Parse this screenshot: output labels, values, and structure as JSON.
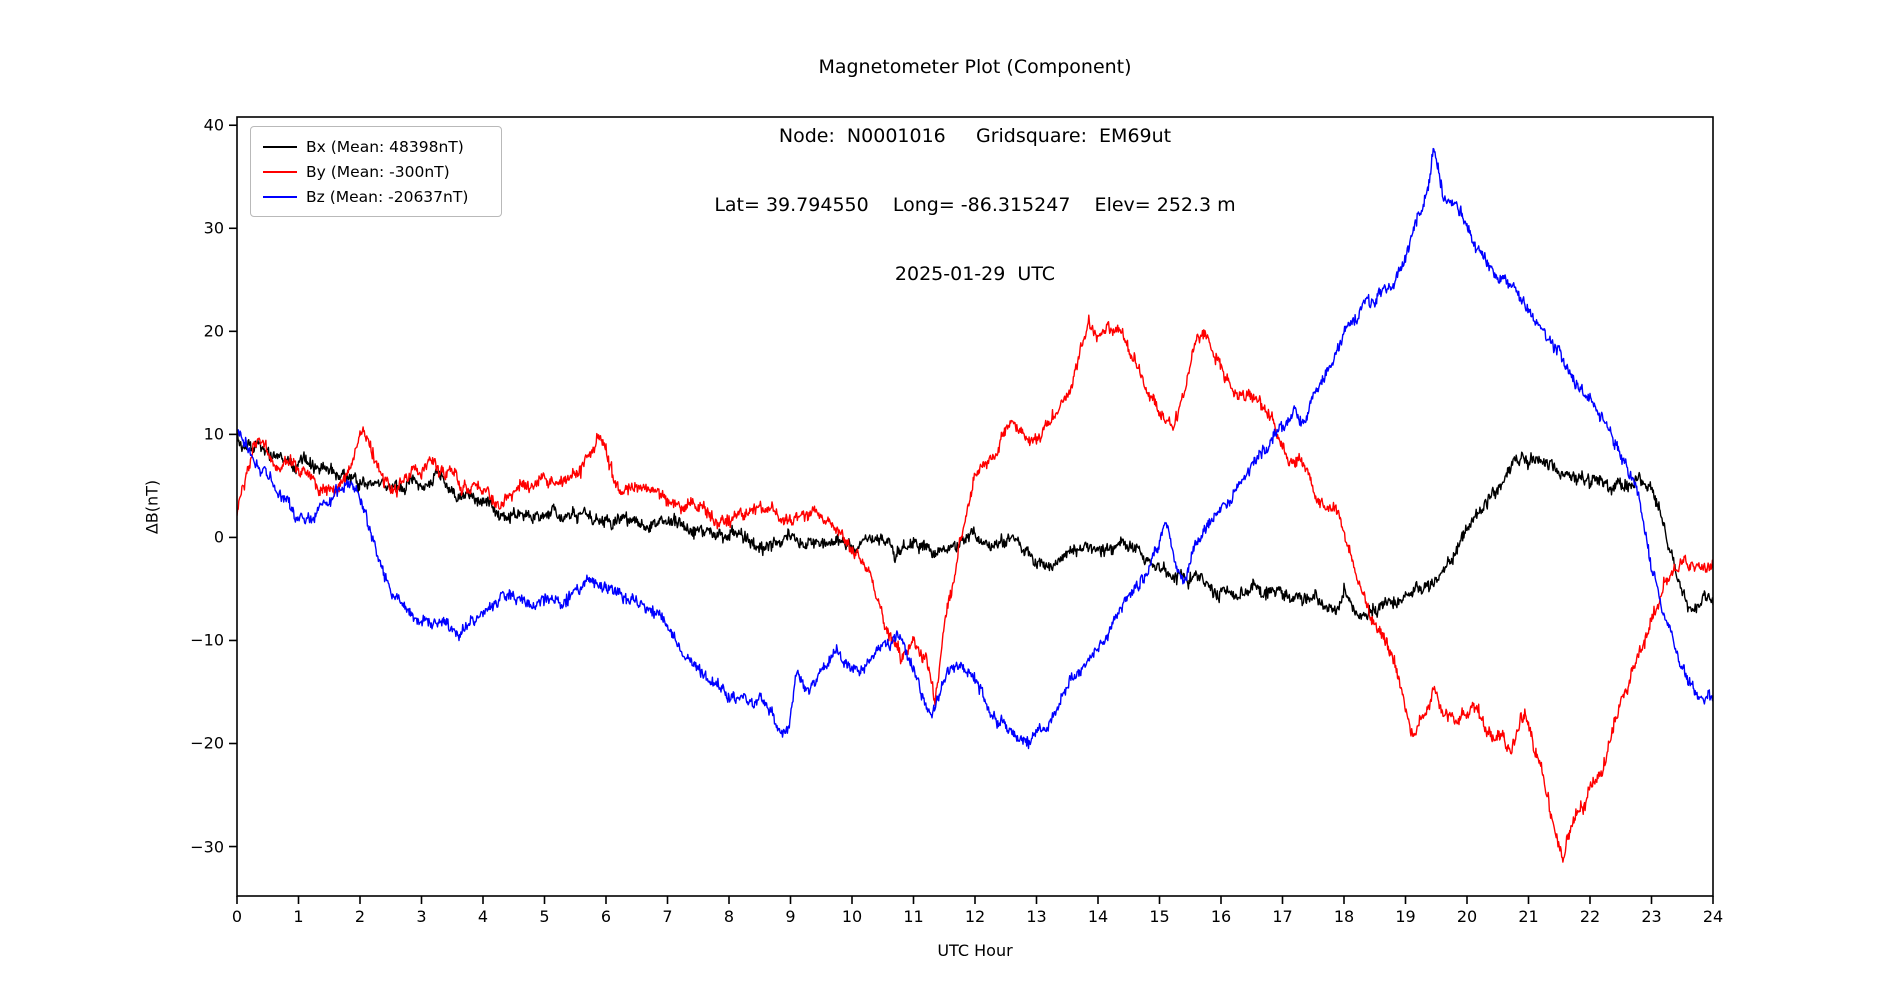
{
  "figure": {
    "title_lines": [
      "Magnetometer Plot (Component)",
      "Node:  N0001016     Gridsquare:  EM69ut",
      "Lat= 39.794550    Long= -86.315247    Elev= 252.3 m",
      "2025-01-29  UTC"
    ]
  },
  "axes": {
    "xlabel": "UTC Hour",
    "ylabel": "ΔB(nT)",
    "x_ticks": [
      0,
      1,
      2,
      3,
      4,
      5,
      6,
      7,
      8,
      9,
      10,
      11,
      12,
      13,
      14,
      15,
      16,
      17,
      18,
      19,
      20,
      21,
      22,
      23,
      24
    ],
    "y_ticks": [
      40,
      30,
      20,
      10,
      0,
      -10,
      -20,
      -30
    ]
  },
  "legend": {
    "entries": [
      {
        "label": "Bx (Mean: 48398nT)",
        "color": "#000000"
      },
      {
        "label": "By (Mean: -300nT)",
        "color": "#ff0000"
      },
      {
        "label": "Bz (Mean: -20637nT)",
        "color": "#0000ff"
      }
    ]
  },
  "chart_data": {
    "type": "line",
    "title": "Magnetometer Plot (Component)",
    "subtitle": "Node N0001016, Gridsquare EM69ut, 2025-01-29 UTC",
    "xlabel": "UTC Hour",
    "ylabel": "ΔB(nT)",
    "xlim": [
      0,
      24
    ],
    "ylim": [
      -34.8,
      40.8
    ],
    "grid": false,
    "legend_position": "upper left",
    "series": [
      {
        "name": "Bx (Mean: 48398nT)",
        "color": "#000000",
        "seed": 11,
        "noise_amp": 1.0,
        "anchors": [
          [
            0,
            10
          ],
          [
            0.1,
            9.2
          ],
          [
            0.3,
            8.6
          ],
          [
            0.5,
            8.2
          ],
          [
            0.8,
            7.4
          ],
          [
            1,
            7
          ],
          [
            1.3,
            6.6
          ],
          [
            1.5,
            6.4
          ],
          [
            1.8,
            6.2
          ],
          [
            2,
            5.8
          ],
          [
            2.3,
            5.1
          ],
          [
            2.5,
            4.8
          ],
          [
            2.8,
            5.1
          ],
          [
            3,
            5.2
          ],
          [
            3.3,
            5.5
          ],
          [
            3.5,
            4.8
          ],
          [
            3.8,
            4.1
          ],
          [
            4,
            3.5
          ],
          [
            4.3,
            3
          ],
          [
            4.5,
            2.8
          ],
          [
            5,
            2.5
          ],
          [
            5.5,
            2
          ],
          [
            6,
            2.1
          ],
          [
            6.5,
            1.6
          ],
          [
            7,
            1.1
          ],
          [
            7.5,
            0.6
          ],
          [
            8,
            0.1
          ],
          [
            8.5,
            -0.4
          ],
          [
            9,
            0
          ],
          [
            9.5,
            -0.5
          ],
          [
            10,
            -1
          ],
          [
            10.4,
            -1.1
          ],
          [
            10.7,
            -1.9
          ],
          [
            11,
            -1.5
          ],
          [
            11.5,
            -0.6
          ],
          [
            12,
            -0.2
          ],
          [
            12.5,
            -0.7
          ],
          [
            13,
            -1.6
          ],
          [
            13.2,
            -2.5
          ],
          [
            13.5,
            -0.9
          ],
          [
            14,
            -0.9
          ],
          [
            14.5,
            -0.7
          ],
          [
            15,
            -2.3
          ],
          [
            15.5,
            -4.4
          ],
          [
            16,
            -5.1
          ],
          [
            16.5,
            -5.5
          ],
          [
            17,
            -6
          ],
          [
            17.5,
            -6.6
          ],
          [
            17.7,
            -7.3
          ],
          [
            18,
            -5.9
          ],
          [
            18.25,
            -8.1
          ],
          [
            18.5,
            -7
          ],
          [
            19,
            -6.1
          ],
          [
            19.3,
            -4.7
          ],
          [
            19.5,
            -4.1
          ],
          [
            19.8,
            -2.1
          ],
          [
            20,
            0.3
          ],
          [
            20.15,
            2.2
          ],
          [
            20.3,
            3.9
          ],
          [
            20.5,
            5.2
          ],
          [
            20.7,
            6.7
          ],
          [
            20.9,
            8
          ],
          [
            21,
            6.5
          ],
          [
            21.2,
            7
          ],
          [
            21.35,
            7.6
          ],
          [
            21.5,
            6.4
          ],
          [
            21.7,
            6
          ],
          [
            22,
            5.9
          ],
          [
            22.2,
            6
          ],
          [
            22.4,
            5.6
          ],
          [
            22.6,
            5.1
          ],
          [
            22.8,
            5.8
          ],
          [
            23,
            4.9
          ],
          [
            23.1,
            3.6
          ],
          [
            23.25,
            0.5
          ],
          [
            23.4,
            -3.5
          ],
          [
            23.55,
            -5.6
          ],
          [
            23.7,
            -7
          ],
          [
            23.85,
            -6.5
          ],
          [
            24,
            -6.8
          ]
        ]
      },
      {
        "name": "By (Mean: -300nT)",
        "color": "#ff0000",
        "seed": 22,
        "noise_amp": 1.0,
        "anchors": [
          [
            0,
            2
          ],
          [
            0.15,
            6.5
          ],
          [
            0.3,
            9.3
          ],
          [
            0.5,
            8.3
          ],
          [
            0.7,
            7.5
          ],
          [
            1,
            6.5
          ],
          [
            1.3,
            5.3
          ],
          [
            1.5,
            5
          ],
          [
            1.7,
            4.8
          ],
          [
            1.9,
            7.5
          ],
          [
            2.05,
            10.6
          ],
          [
            2.2,
            8
          ],
          [
            2.4,
            5.2
          ],
          [
            2.6,
            4.6
          ],
          [
            2.8,
            6
          ],
          [
            3,
            6.8
          ],
          [
            3.2,
            7
          ],
          [
            3.5,
            5.6
          ],
          [
            3.8,
            4.8
          ],
          [
            4,
            4.4
          ],
          [
            4.3,
            3.8
          ],
          [
            4.6,
            4.4
          ],
          [
            5,
            5
          ],
          [
            5.3,
            5.3
          ],
          [
            5.6,
            6.2
          ],
          [
            5.85,
            10.3
          ],
          [
            6,
            8.8
          ],
          [
            6.15,
            5
          ],
          [
            6.3,
            3.6
          ],
          [
            6.5,
            4.6
          ],
          [
            6.7,
            4.9
          ],
          [
            7,
            3.8
          ],
          [
            7.3,
            2.6
          ],
          [
            7.6,
            2
          ],
          [
            8,
            1.4
          ],
          [
            8.3,
            2.1
          ],
          [
            8.5,
            2.7
          ],
          [
            8.8,
            1.8
          ],
          [
            9,
            2.3
          ],
          [
            9.3,
            2.5
          ],
          [
            9.5,
            2
          ],
          [
            9.8,
            0.6
          ],
          [
            10,
            -0.9
          ],
          [
            10.2,
            -2.2
          ],
          [
            10.4,
            -5.5
          ],
          [
            10.6,
            -10
          ],
          [
            10.8,
            -11.5
          ],
          [
            11,
            -10.5
          ],
          [
            11.2,
            -12
          ],
          [
            11.35,
            -15.8
          ],
          [
            11.5,
            -8
          ],
          [
            11.65,
            -3.7
          ],
          [
            11.8,
            0.2
          ],
          [
            12,
            4.9
          ],
          [
            12.2,
            7.3
          ],
          [
            12.4,
            9.6
          ],
          [
            12.6,
            11.6
          ],
          [
            12.8,
            9.8
          ],
          [
            13,
            8.6
          ],
          [
            13.2,
            10.5
          ],
          [
            13.4,
            13
          ],
          [
            13.6,
            15.5
          ],
          [
            13.85,
            21
          ],
          [
            14,
            19.6
          ],
          [
            14.2,
            20.6
          ],
          [
            14.4,
            19.9
          ],
          [
            14.6,
            16.6
          ],
          [
            14.8,
            14
          ],
          [
            15,
            12.1
          ],
          [
            15.2,
            10.2
          ],
          [
            15.4,
            13
          ],
          [
            15.6,
            17.8
          ],
          [
            15.75,
            18.7
          ],
          [
            15.9,
            17.6
          ],
          [
            16,
            16.6
          ],
          [
            16.2,
            14.6
          ],
          [
            16.4,
            13.3
          ],
          [
            16.6,
            12.5
          ],
          [
            16.8,
            11.6
          ],
          [
            17,
            9.2
          ],
          [
            17.2,
            7.4
          ],
          [
            17.4,
            6.4
          ],
          [
            17.55,
            3.6
          ],
          [
            17.7,
            3.1
          ],
          [
            17.9,
            2.9
          ],
          [
            18,
            0.5
          ],
          [
            18.2,
            -4
          ],
          [
            18.4,
            -7
          ],
          [
            18.6,
            -9
          ],
          [
            18.8,
            -11
          ],
          [
            19,
            -16
          ],
          [
            19.1,
            -18.8
          ],
          [
            19.3,
            -17
          ],
          [
            19.45,
            -14.9
          ],
          [
            19.6,
            -16.5
          ],
          [
            19.8,
            -18
          ],
          [
            20,
            -17.4
          ],
          [
            20.1,
            -16.4
          ],
          [
            20.3,
            -19
          ],
          [
            20.5,
            -19.6
          ],
          [
            20.7,
            -20.3
          ],
          [
            20.95,
            -16.4
          ],
          [
            21.1,
            -21
          ],
          [
            21.25,
            -23.6
          ],
          [
            21.4,
            -28
          ],
          [
            21.55,
            -30.3
          ],
          [
            21.7,
            -27.6
          ],
          [
            21.9,
            -26
          ],
          [
            22,
            -24.2
          ],
          [
            22.2,
            -22
          ],
          [
            22.4,
            -17.6
          ],
          [
            22.6,
            -14.4
          ],
          [
            22.8,
            -11
          ],
          [
            23,
            -7.7
          ],
          [
            23.2,
            -5
          ],
          [
            23.4,
            -3
          ],
          [
            23.55,
            -2.2
          ],
          [
            23.7,
            -3.6
          ],
          [
            23.85,
            -3
          ],
          [
            24,
            -2.4
          ]
        ]
      },
      {
        "name": "Bz (Mean: -20637nT)",
        "color": "#0000ff",
        "seed": 33,
        "noise_amp": 0.9,
        "anchors": [
          [
            0,
            10.4
          ],
          [
            0.3,
            7
          ],
          [
            0.5,
            6
          ],
          [
            0.8,
            3.5
          ],
          [
            1,
            2.3
          ],
          [
            1.2,
            1.9
          ],
          [
            1.4,
            3
          ],
          [
            1.6,
            4
          ],
          [
            1.85,
            5.4
          ],
          [
            2,
            4
          ],
          [
            2.2,
            0
          ],
          [
            2.4,
            -4.5
          ],
          [
            2.7,
            -6.6
          ],
          [
            3,
            -7.6
          ],
          [
            3.2,
            -8
          ],
          [
            3.4,
            -8.6
          ],
          [
            3.6,
            -9.8
          ],
          [
            3.8,
            -8
          ],
          [
            4,
            -6.8
          ],
          [
            4.3,
            -5.6
          ],
          [
            4.6,
            -6.6
          ],
          [
            5,
            -6.1
          ],
          [
            5.3,
            -6.6
          ],
          [
            5.6,
            -5.1
          ],
          [
            5.9,
            -4.7
          ],
          [
            6.2,
            -5
          ],
          [
            6.5,
            -5.6
          ],
          [
            6.8,
            -7.6
          ],
          [
            7,
            -9
          ],
          [
            7.3,
            -11.5
          ],
          [
            7.6,
            -13
          ],
          [
            8,
            -15.5
          ],
          [
            8.3,
            -16.6
          ],
          [
            8.5,
            -15.6
          ],
          [
            8.8,
            -18.1
          ],
          [
            8.95,
            -18.6
          ],
          [
            9.1,
            -13
          ],
          [
            9.3,
            -15
          ],
          [
            9.5,
            -13.6
          ],
          [
            9.8,
            -11.9
          ],
          [
            10,
            -12.8
          ],
          [
            10.3,
            -12
          ],
          [
            10.5,
            -10.8
          ],
          [
            10.8,
            -10
          ],
          [
            11,
            -12.6
          ],
          [
            11.3,
            -17.6
          ],
          [
            11.5,
            -13.6
          ],
          [
            11.7,
            -11.6
          ],
          [
            12,
            -13.6
          ],
          [
            12.3,
            -18
          ],
          [
            12.5,
            -18.6
          ],
          [
            12.9,
            -19.9
          ],
          [
            13,
            -19
          ],
          [
            13.3,
            -17
          ],
          [
            13.5,
            -15
          ],
          [
            13.8,
            -11.9
          ],
          [
            14,
            -10.6
          ],
          [
            14.3,
            -7.6
          ],
          [
            14.5,
            -5.9
          ],
          [
            14.8,
            -3.6
          ],
          [
            15,
            -1
          ],
          [
            15.1,
            0.8
          ],
          [
            15.25,
            -2
          ],
          [
            15.4,
            -3.9
          ],
          [
            15.55,
            -0.6
          ],
          [
            15.8,
            1.8
          ],
          [
            16,
            3.4
          ],
          [
            16.3,
            5
          ],
          [
            16.5,
            6.7
          ],
          [
            16.8,
            8.6
          ],
          [
            17,
            10.3
          ],
          [
            17.2,
            11.6
          ],
          [
            17.35,
            11.2
          ],
          [
            17.5,
            13.6
          ],
          [
            17.8,
            17
          ],
          [
            18,
            19.5
          ],
          [
            18.3,
            21.9
          ],
          [
            18.5,
            22.9
          ],
          [
            18.8,
            24.4
          ],
          [
            19,
            27
          ],
          [
            19.2,
            31
          ],
          [
            19.35,
            34
          ],
          [
            19.45,
            37.6
          ],
          [
            19.6,
            33.6
          ],
          [
            19.8,
            32.4
          ],
          [
            20,
            30.4
          ],
          [
            20.3,
            27.4
          ],
          [
            20.5,
            25.4
          ],
          [
            20.8,
            24.1
          ],
          [
            21,
            22
          ],
          [
            21.3,
            19.9
          ],
          [
            21.5,
            18.4
          ],
          [
            21.8,
            15.6
          ],
          [
            22,
            14
          ],
          [
            22.3,
            10.5
          ],
          [
            22.5,
            8
          ],
          [
            22.8,
            3.6
          ],
          [
            23,
            -2.9
          ],
          [
            23.2,
            -7
          ],
          [
            23.35,
            -10
          ],
          [
            23.5,
            -13
          ],
          [
            23.7,
            -14.6
          ],
          [
            23.9,
            -15.4
          ],
          [
            24,
            -15.9
          ]
        ]
      }
    ]
  }
}
